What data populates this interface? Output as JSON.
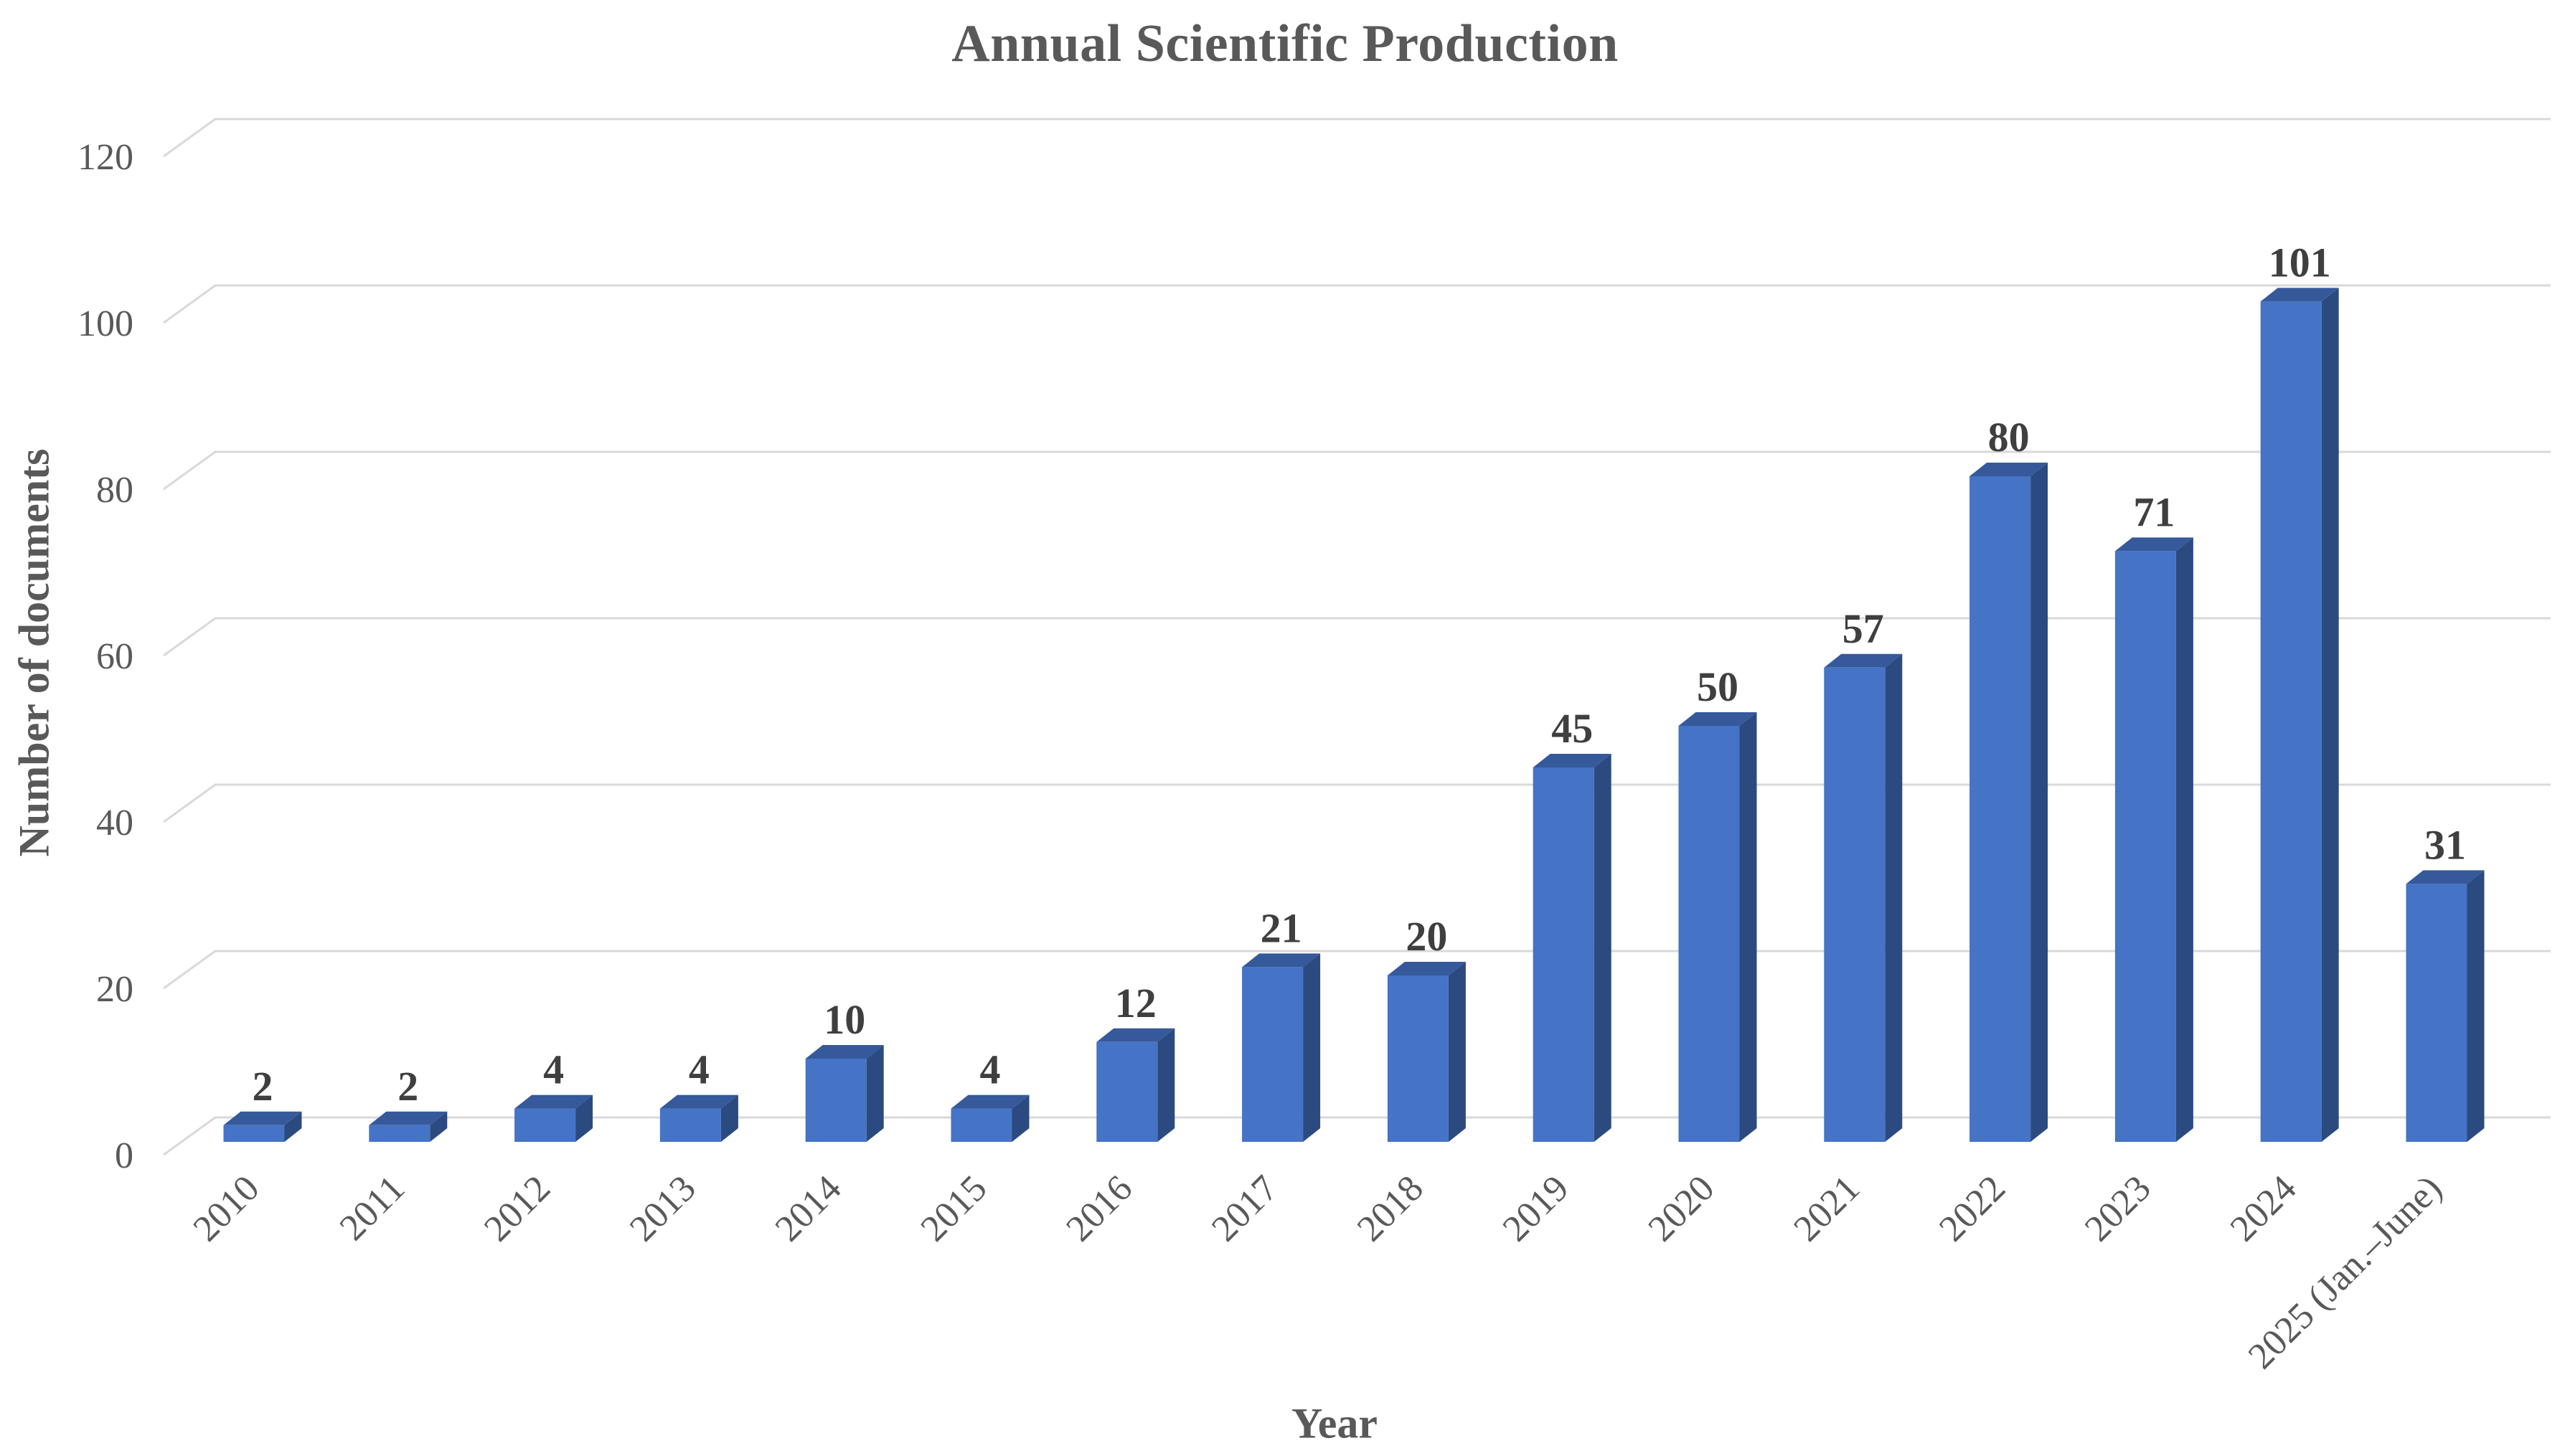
{
  "chart_data": {
    "type": "bar",
    "title": "Annual Scientific Production",
    "xlabel": "Year",
    "ylabel": "Number of documents",
    "categories": [
      "2010",
      "2011",
      "2012",
      "2013",
      "2014",
      "2015",
      "2016",
      "2017",
      "2018",
      "2019",
      "2020",
      "2021",
      "2022",
      "2023",
      "2024",
      "2025 (Jan.–June)"
    ],
    "values": [
      2,
      2,
      4,
      4,
      10,
      4,
      12,
      21,
      20,
      45,
      50,
      57,
      80,
      71,
      101,
      31
    ],
    "data_labels": [
      "2",
      "2",
      "4",
      "4",
      "10",
      "4",
      "12",
      "21",
      "20",
      "45",
      "50",
      "57",
      "80",
      "71",
      "101",
      "31"
    ],
    "yticks": [
      0,
      20,
      40,
      60,
      80,
      100,
      120
    ],
    "ylim": [
      0,
      120
    ],
    "grid": true,
    "style_3d": true,
    "legend": "none",
    "colors": {
      "bar_front": "#4573C6",
      "bar_top": "#35599B",
      "bar_side": "#2B4A7F",
      "gridline": "#D9D9D9",
      "axis_text": "#595959",
      "data_label": "#3F3F3F",
      "title_text": "#595959",
      "background": "#FFFFFF"
    }
  }
}
